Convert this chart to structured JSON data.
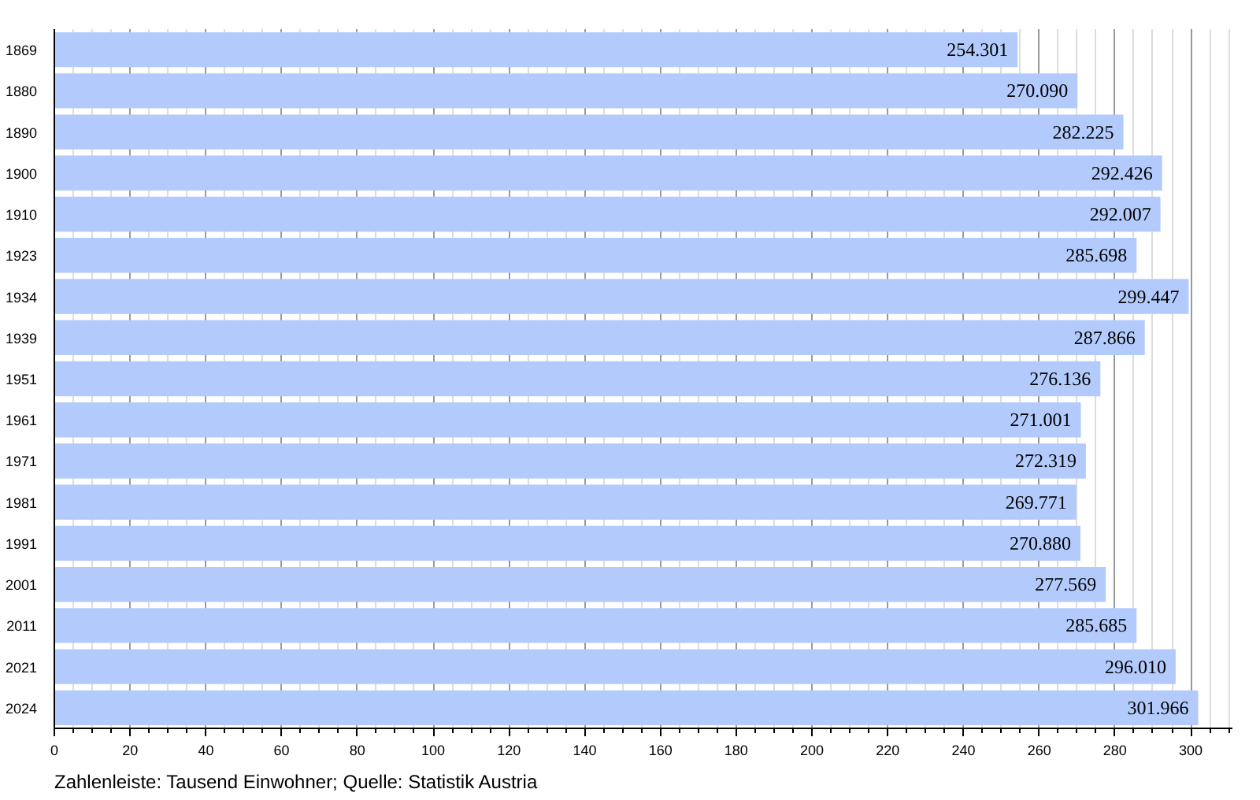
{
  "chart_data": {
    "type": "bar",
    "orientation": "horizontal",
    "categories": [
      "1869",
      "1880",
      "1890",
      "1900",
      "1910",
      "1923",
      "1934",
      "1939",
      "1951",
      "1961",
      "1971",
      "1981",
      "1991",
      "2001",
      "2011",
      "2021",
      "2024"
    ],
    "values": [
      254.301,
      270.09,
      282.225,
      292.426,
      292.007,
      285.698,
      299.447,
      287.866,
      276.136,
      271.001,
      272.319,
      269.771,
      270.88,
      277.569,
      285.685,
      296.01,
      301.966
    ],
    "value_labels": [
      "254.301",
      "270.090",
      "282.225",
      "292.426",
      "292.007",
      "285.698",
      "299.447",
      "287.866",
      "276.136",
      "271.001",
      "272.319",
      "269.771",
      "270.880",
      "277.569",
      "285.685",
      "296.010",
      "301.966"
    ],
    "color": "#b3cbfc",
    "xlim": [
      0,
      311
    ],
    "xticks": [
      0,
      20,
      40,
      60,
      80,
      100,
      120,
      140,
      160,
      180,
      200,
      220,
      240,
      260,
      280,
      300,
      {
        "value": 5,
        "label": null
      },
      {
        "value": 10,
        "label": null
      },
      {
        "value": 15,
        "label": null
      },
      {
        "value": 25,
        "label": null
      },
      {
        "value": 30,
        "label": null
      },
      {
        "value": 35,
        "label": null
      },
      {
        "value": 45,
        "label": null
      },
      {
        "value": 50,
        "label": null
      },
      {
        "value": 55,
        "label": null
      },
      {
        "value": 65,
        "label": null
      },
      {
        "value": 70,
        "label": null
      },
      {
        "value": 75,
        "label": null
      },
      {
        "value": 85,
        "label": null
      },
      {
        "value": 90,
        "label": null
      },
      {
        "value": 95,
        "label": null
      },
      {
        "value": 105,
        "label": null
      },
      {
        "value": 110,
        "label": null
      },
      {
        "value": 115,
        "label": null
      },
      {
        "value": 125,
        "label": null
      },
      {
        "value": 130,
        "label": null
      },
      {
        "value": 135,
        "label": null
      },
      {
        "value": 145,
        "label": null
      },
      {
        "value": 150,
        "label": null
      },
      {
        "value": 155,
        "label": null
      },
      {
        "value": 165,
        "label": null
      },
      {
        "value": 170,
        "label": null
      },
      {
        "value": 175,
        "label": null
      },
      {
        "value": 185,
        "label": null
      },
      {
        "value": 190,
        "label": null
      },
      {
        "value": 195,
        "label": null
      },
      {
        "value": 205,
        "label": null
      },
      {
        "value": 210,
        "label": null
      },
      {
        "value": 215,
        "label": null
      },
      {
        "value": 225,
        "label": null
      },
      {
        "value": 230,
        "label": null
      },
      {
        "value": 235,
        "label": null
      },
      {
        "value": 245,
        "label": null
      },
      {
        "value": 250,
        "label": null
      },
      {
        "value": 255,
        "label": null
      },
      {
        "value": 265,
        "label": null
      },
      {
        "value": 270,
        "label": null
      },
      {
        "value": 275,
        "label": null
      },
      {
        "value": 285,
        "label": null
      },
      {
        "value": 290,
        "label": null
      },
      {
        "value": 295,
        "label": null
      },
      {
        "value": 305,
        "label": null
      },
      {
        "value": 310,
        "label": null
      }
    ],
    "grid": "x",
    "annotations": [
      "Zahlenleiste: Tausend Einwohner; Quelle: Statistik Austria"
    ]
  }
}
